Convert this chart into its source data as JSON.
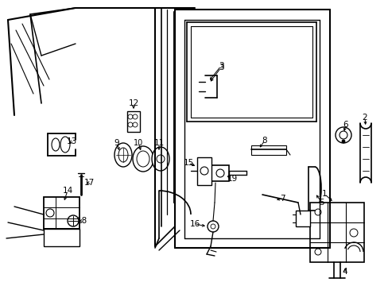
{
  "bg_color": "#ffffff",
  "line_color": "#000000",
  "fig_w": 4.89,
  "fig_h": 3.6,
  "dpi": 100
}
